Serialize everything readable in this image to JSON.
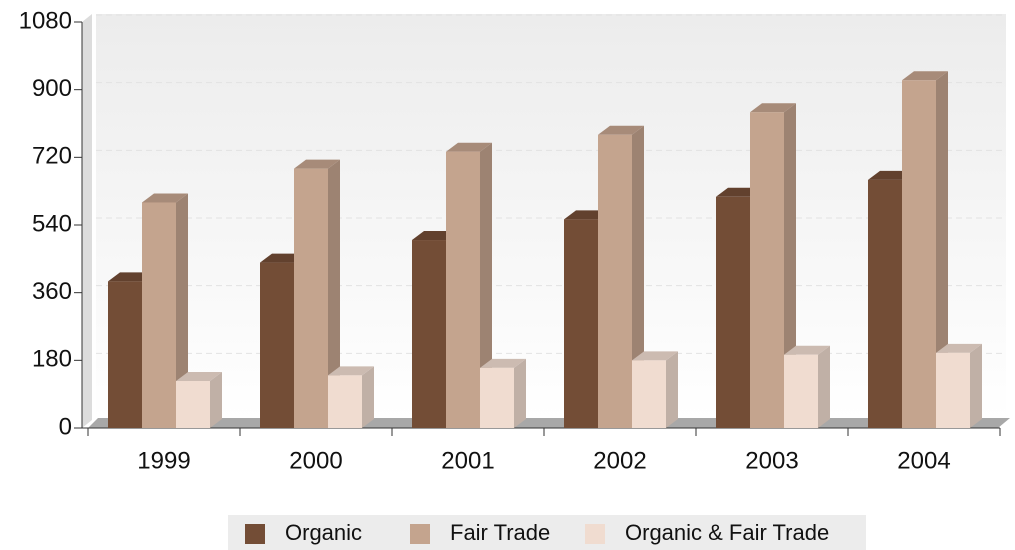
{
  "chart_data": {
    "type": "bar3d",
    "categories": [
      "1999",
      "2000",
      "2001",
      "2002",
      "2003",
      "2004"
    ],
    "series": [
      {
        "name": "Organic",
        "color": "#734d36",
        "values": [
          390,
          440,
          500,
          555,
          615,
          660
        ]
      },
      {
        "name": "Fair Trade",
        "color": "#c4a48e",
        "values": [
          600,
          690,
          735,
          780,
          840,
          925
        ]
      },
      {
        "name": "Organic & Fair Trade",
        "color": "#f0dcd0",
        "values": [
          125,
          140,
          160,
          180,
          195,
          200
        ]
      }
    ],
    "ylim": [
      0,
      1080
    ],
    "yticks": [
      0,
      180,
      360,
      540,
      720,
      900,
      1080
    ],
    "grid": true,
    "legend": "bottom"
  }
}
